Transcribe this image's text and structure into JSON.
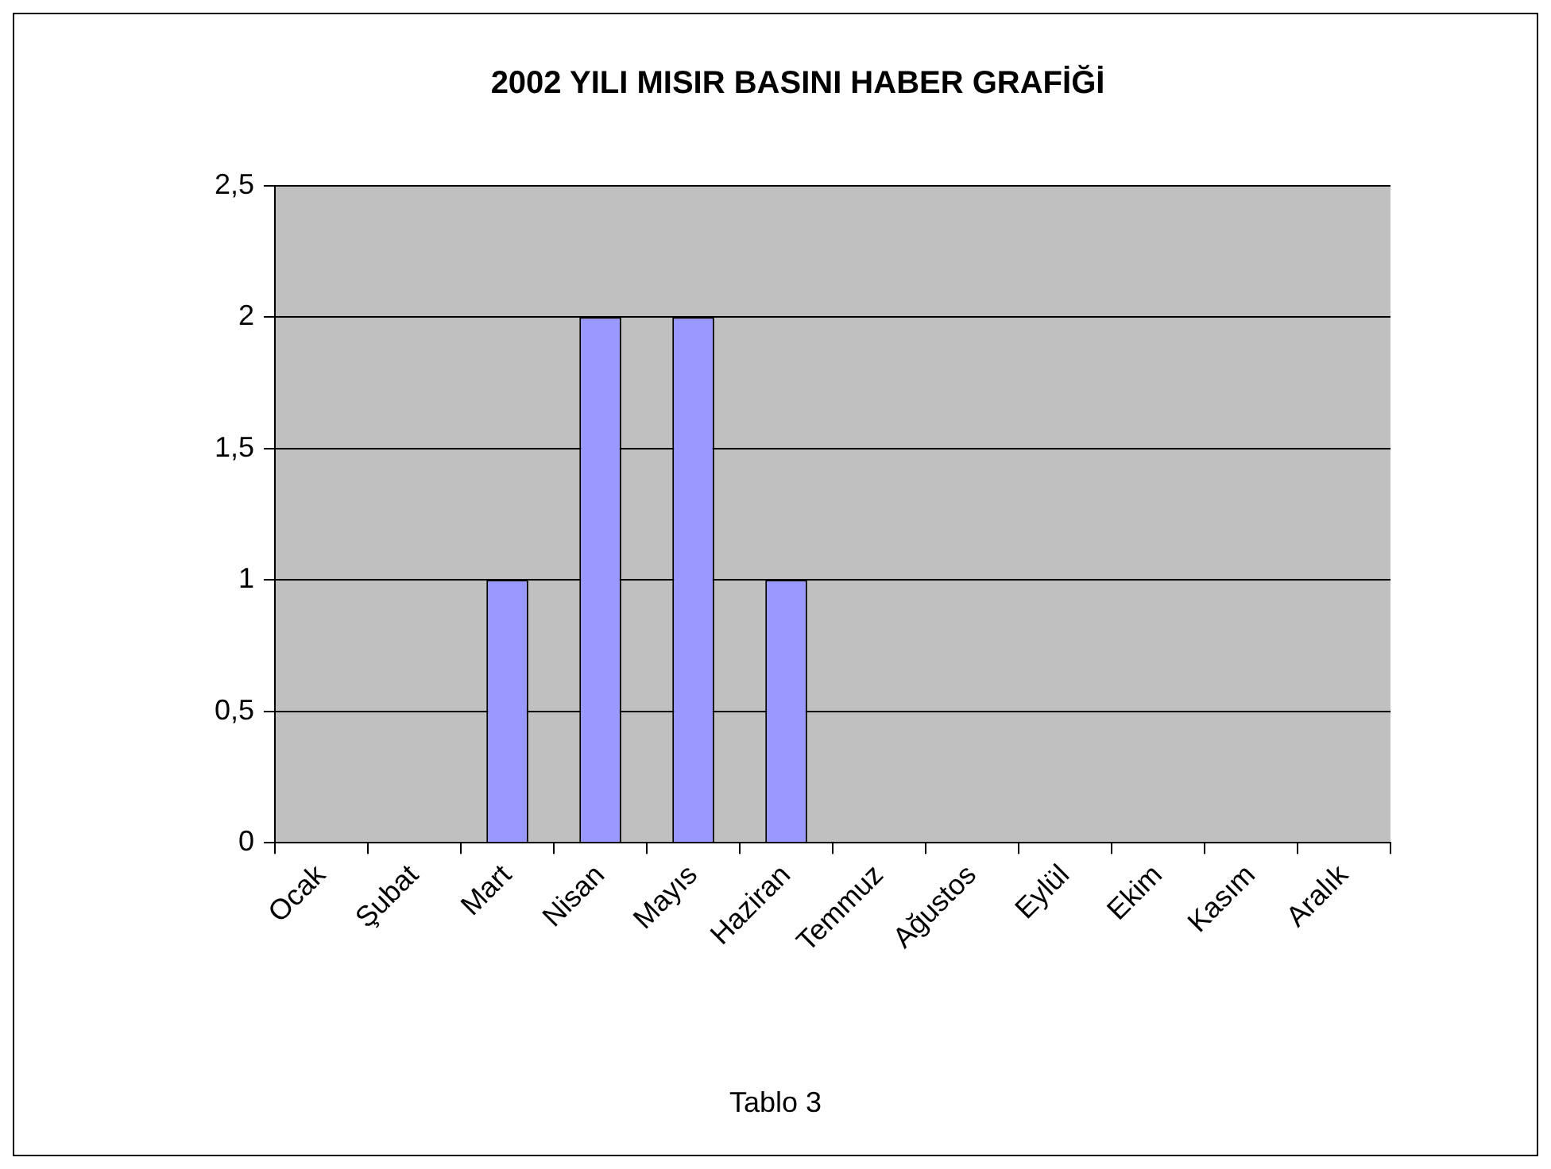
{
  "chart_data": {
    "type": "bar",
    "title": "2002 YILI MISIR BASINI HABER GRAFİĞİ",
    "categories": [
      "Ocak",
      "Şubat",
      "Mart",
      "Nisan",
      "Mayıs",
      "Haziran",
      "Temmuz",
      "Ağustos",
      "Eylül",
      "Ekim",
      "Kasım",
      "Aralık"
    ],
    "values": [
      0,
      0,
      1,
      2,
      2,
      1,
      0,
      0,
      0,
      0,
      0,
      0
    ],
    "color": "#9999ff",
    "ylim": [
      0,
      2.5
    ],
    "yticks": [
      0,
      {
        "value": 0.5,
        "label": "0,5"
      },
      1,
      {
        "value": 1.5,
        "label": "1,5"
      },
      2,
      {
        "value": 2.5,
        "label": "2,5"
      }
    ],
    "grid": "y",
    "annotations": [
      "Tablo 3"
    ]
  }
}
